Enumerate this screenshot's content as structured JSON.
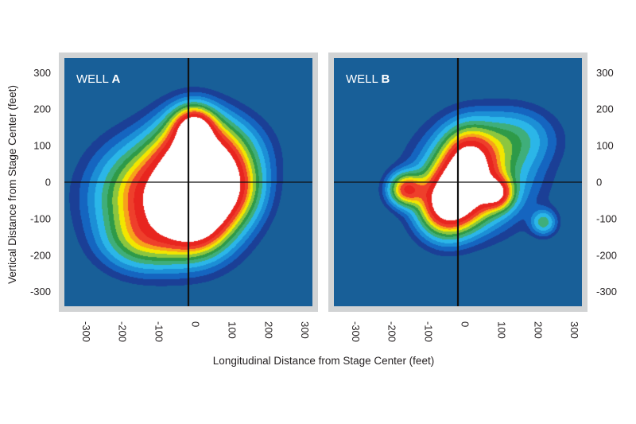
{
  "chart_data": [
    {
      "type": "heatmap",
      "title_prefix": "WELL",
      "title_letter": "A",
      "xlabel": "Longitudinal Distance from Stage Center (feet)",
      "ylabel": "Vertical Distance from Stage Center (feet)",
      "xlim": [
        -340,
        340
      ],
      "ylim": [
        -340,
        340
      ],
      "xticks": [
        "-300",
        "-200",
        "-100",
        "0",
        "100",
        "200",
        "300"
      ],
      "yticks": [
        "300",
        "200",
        "100",
        "0",
        "-100",
        "-200",
        "-300"
      ],
      "xtick_values": [
        -300,
        -200,
        -100,
        0,
        100,
        200,
        300
      ],
      "ytick_values": [
        300,
        200,
        100,
        0,
        -100,
        -200,
        -300
      ],
      "colormap": [
        "#185f98",
        "#1b3f96",
        "#1565c0",
        "#1c8fd6",
        "#2bb6e8",
        "#3fae7a",
        "#2e9a48",
        "#8cc63f",
        "#f2e600",
        "#f7a21b",
        "#ee3f2b",
        "#e8251f",
        "#ffffff"
      ],
      "sources": [
        {
          "x": -80,
          "y": -40,
          "amp": 1.0,
          "sx": 95,
          "sy": 85
        },
        {
          "x": 25,
          "y": -20,
          "amp": 0.95,
          "sx": 75,
          "sy": 90
        },
        {
          "x": 90,
          "y": -15,
          "amp": 0.9,
          "sx": 60,
          "sy": 60
        },
        {
          "x": 15,
          "y": -105,
          "amp": 0.9,
          "sx": 55,
          "sy": 55
        },
        {
          "x": 15,
          "y": 150,
          "amp": 0.95,
          "sx": 35,
          "sy": 35
        },
        {
          "x": 10,
          "y": 75,
          "amp": 0.55,
          "sx": 60,
          "sy": 70
        },
        {
          "x": -120,
          "y": -160,
          "amp": 0.35,
          "sx": 70,
          "sy": 50
        },
        {
          "x": 60,
          "y": 80,
          "amp": 0.5,
          "sx": 80,
          "sy": 60
        }
      ]
    },
    {
      "type": "heatmap",
      "title_prefix": "WELL",
      "title_letter": "B",
      "xlim": [
        -340,
        340
      ],
      "ylim": [
        -340,
        340
      ],
      "xticks": [
        "-300",
        "-200",
        "-100",
        "0",
        "100",
        "200",
        "300"
      ],
      "yticks": [
        "300",
        "200",
        "100",
        "0",
        "-100",
        "-200",
        "-300"
      ],
      "xtick_values": [
        -300,
        -200,
        -100,
        0,
        100,
        200,
        300
      ],
      "ytick_values": [
        300,
        200,
        100,
        0,
        -100,
        -200,
        -300
      ],
      "sources": [
        {
          "x": 5,
          "y": -30,
          "amp": 1.05,
          "sx": 55,
          "sy": 55
        },
        {
          "x": 30,
          "y": 60,
          "amp": 0.85,
          "sx": 45,
          "sy": 55
        },
        {
          "x": -35,
          "y": -70,
          "amp": 0.8,
          "sx": 45,
          "sy": 50
        },
        {
          "x": 105,
          "y": -30,
          "amp": 0.85,
          "sx": 28,
          "sy": 28
        },
        {
          "x": -140,
          "y": -20,
          "amp": 0.8,
          "sx": 30,
          "sy": 28
        },
        {
          "x": 50,
          "y": 20,
          "amp": 0.5,
          "sx": 90,
          "sy": 80
        },
        {
          "x": 235,
          "y": -110,
          "amp": 0.3,
          "sx": 22,
          "sy": 22
        },
        {
          "x": 150,
          "y": 120,
          "amp": 0.25,
          "sx": 70,
          "sy": 50
        }
      ]
    }
  ]
}
